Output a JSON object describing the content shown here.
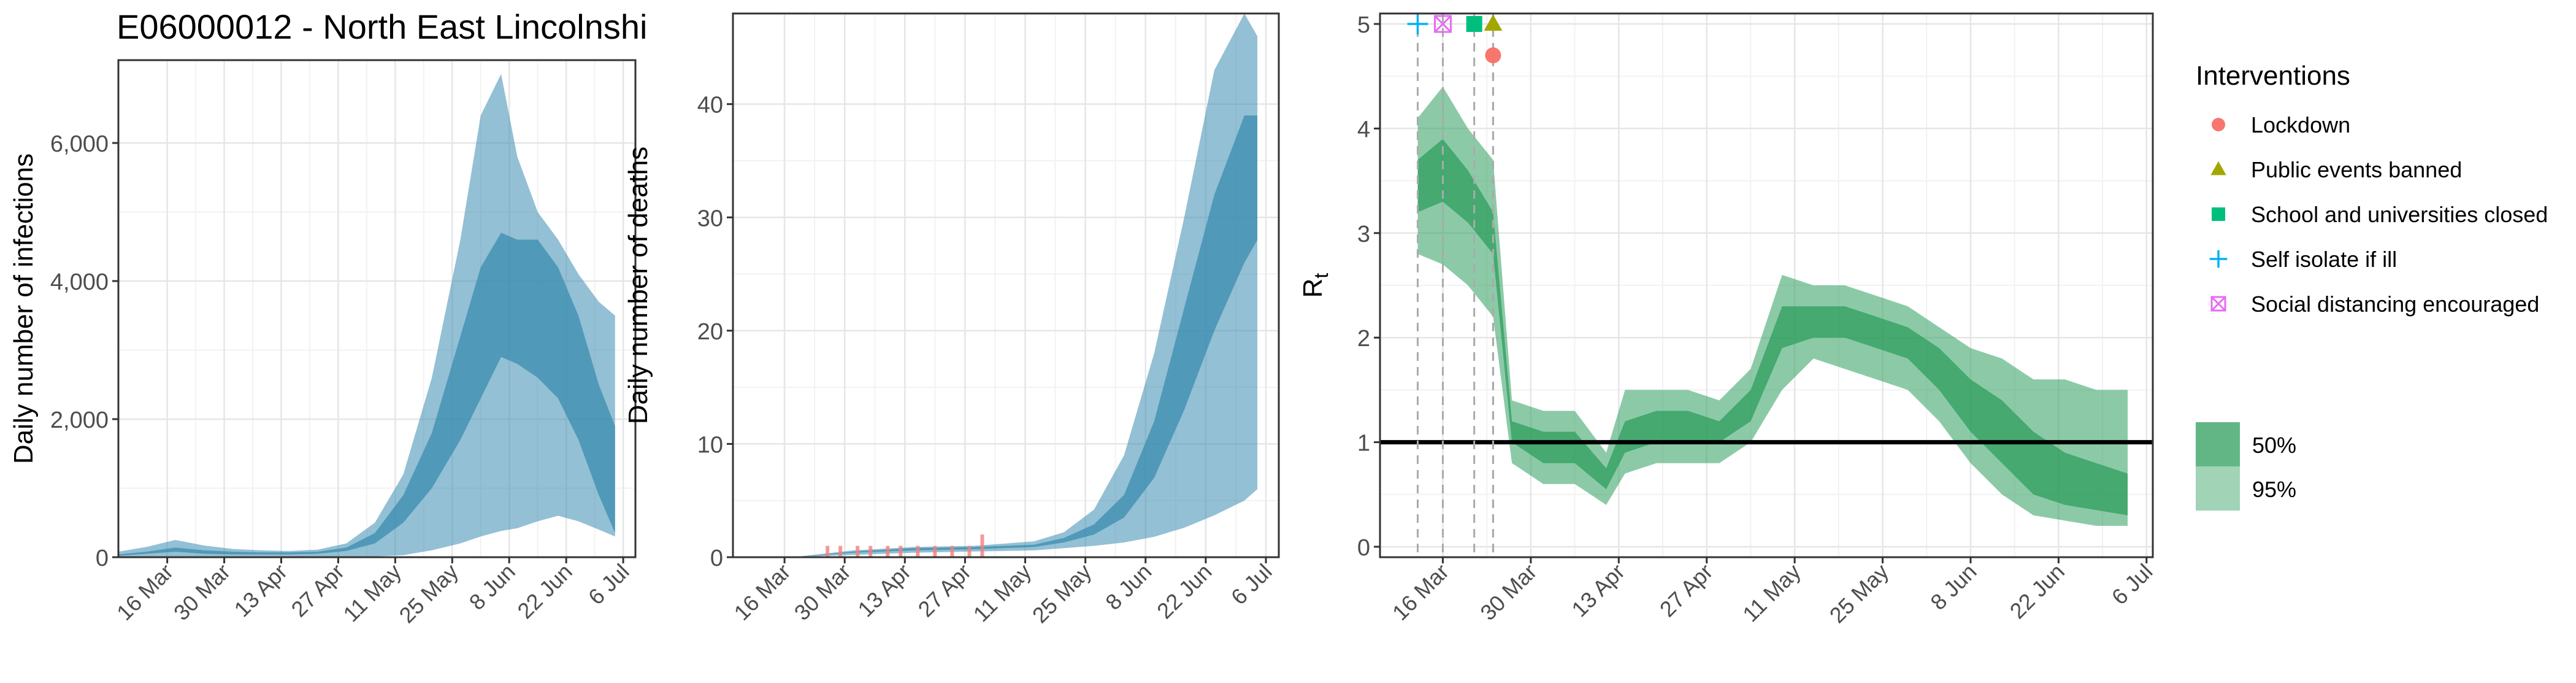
{
  "title": "E06000012 - North East Lincolnshi",
  "colors": {
    "infections_band": "#3b8cb0",
    "deaths_band": "#3b8cb0",
    "deaths_bars": "#f08080",
    "rt_band": "#2e9e5e",
    "lockdown": "#F8766D",
    "public_events": "#A3A500",
    "schools": "#00BF7D",
    "self_isolate": "#00B0F6",
    "social_distancing": "#E76BF3"
  },
  "legend": {
    "interventions_title": "Interventions",
    "interventions": [
      {
        "label": "Lockdown",
        "shape": "circle",
        "color": "#F8766D"
      },
      {
        "label": "Public events banned",
        "shape": "triangle",
        "color": "#A3A500"
      },
      {
        "label": "School and universities closed",
        "shape": "square",
        "color": "#00BF7D"
      },
      {
        "label": "Self isolate if ill",
        "shape": "plus",
        "color": "#00B0F6"
      },
      {
        "label": "Social distancing encouraged",
        "shape": "boxx",
        "color": "#E76BF3"
      }
    ],
    "bands": [
      {
        "label": "50%",
        "opacity": 0.75
      },
      {
        "label": "95%",
        "opacity": 0.45
      }
    ]
  },
  "chart_data": [
    {
      "type": "area",
      "id": "infections",
      "ylabel": "Daily number of infections",
      "xlabel": "",
      "ylim": [
        0,
        7200
      ],
      "yticks": [
        0,
        2000,
        4000,
        6000
      ],
      "ytick_labels": [
        "0",
        "2,000",
        "4,000",
        "6,000"
      ],
      "xlim": [
        "2020-03-04",
        "2020-07-09"
      ],
      "xticks": [
        "2020-03-16",
        "2020-03-30",
        "2020-04-13",
        "2020-04-27",
        "2020-05-11",
        "2020-05-25",
        "2020-06-08",
        "2020-06-22",
        "2020-07-06"
      ],
      "xtick_labels": [
        "16 Mar",
        "30 Mar",
        "13 Apr",
        "27 Apr",
        "11 May",
        "25 May",
        "8 Jun",
        "22 Jun",
        "6 Jul"
      ],
      "x": [
        "2020-03-04",
        "2020-03-11",
        "2020-03-18",
        "2020-03-25",
        "2020-04-01",
        "2020-04-08",
        "2020-04-15",
        "2020-04-22",
        "2020-04-29",
        "2020-05-06",
        "2020-05-13",
        "2020-05-20",
        "2020-05-27",
        "2020-06-01",
        "2020-06-06",
        "2020-06-10",
        "2020-06-15",
        "2020-06-20",
        "2020-06-25",
        "2020-06-30",
        "2020-07-04"
      ],
      "series": [
        {
          "name": "95%",
          "lower": [
            0,
            0,
            0,
            0,
            0,
            0,
            0,
            0,
            0,
            10,
            30,
            100,
            200,
            300,
            380,
            420,
            520,
            600,
            520,
            400,
            300
          ],
          "upper": [
            80,
            150,
            250,
            170,
            120,
            100,
            90,
            110,
            200,
            500,
            1200,
            2600,
            4600,
            6400,
            7000,
            5800,
            5000,
            4600,
            4100,
            3700,
            3500
          ]
        },
        {
          "name": "50%",
          "lower": [
            20,
            50,
            80,
            50,
            40,
            40,
            40,
            50,
            90,
            200,
            500,
            1000,
            1700,
            2300,
            2900,
            2800,
            2600,
            2300,
            1700,
            900,
            350
          ],
          "upper": [
            40,
            80,
            140,
            100,
            80,
            70,
            70,
            80,
            140,
            350,
            900,
            1800,
            3200,
            4200,
            4700,
            4600,
            4600,
            4200,
            3500,
            2500,
            1900
          ]
        }
      ]
    },
    {
      "type": "area",
      "id": "deaths",
      "ylabel": "Daily number of deaths",
      "xlabel": "",
      "ylim": [
        0,
        48
      ],
      "yticks": [
        0,
        10,
        20,
        30,
        40
      ],
      "ytick_labels": [
        "0",
        "10",
        "20",
        "30",
        "40"
      ],
      "xlim": [
        "2020-03-04",
        "2020-07-09"
      ],
      "xticks": [
        "2020-03-16",
        "2020-03-30",
        "2020-04-13",
        "2020-04-27",
        "2020-05-11",
        "2020-05-25",
        "2020-06-08",
        "2020-06-22",
        "2020-07-06"
      ],
      "xtick_labels": [
        "16 Mar",
        "30 Mar",
        "13 Apr",
        "27 Apr",
        "11 May",
        "25 May",
        "8 Jun",
        "22 Jun",
        "6 Jul"
      ],
      "x": [
        "2020-03-04",
        "2020-03-18",
        "2020-04-01",
        "2020-04-15",
        "2020-04-29",
        "2020-05-13",
        "2020-05-20",
        "2020-05-27",
        "2020-06-03",
        "2020-06-10",
        "2020-06-17",
        "2020-06-24",
        "2020-07-01",
        "2020-07-04"
      ],
      "series": [
        {
          "name": "95%",
          "lower": [
            0,
            0,
            0.2,
            0.4,
            0.5,
            0.6,
            0.8,
            1.0,
            1.3,
            1.8,
            2.6,
            3.7,
            5.0,
            6.0
          ],
          "upper": [
            0,
            0,
            0.6,
            0.9,
            1.0,
            1.4,
            2.2,
            4.2,
            9.0,
            18.0,
            30.0,
            43.0,
            48.0,
            46.0
          ]
        },
        {
          "name": "50%",
          "lower": [
            0,
            0,
            0.4,
            0.6,
            0.7,
            0.9,
            1.3,
            2.0,
            3.5,
            7.0,
            13.0,
            20.0,
            26.0,
            28.0
          ],
          "upper": [
            0,
            0,
            0.5,
            0.8,
            0.9,
            1.1,
            1.7,
            2.9,
            5.5,
            12.0,
            22.0,
            32.0,
            39.0,
            39.0
          ]
        }
      ],
      "bars": {
        "x": [
          "2020-03-26",
          "2020-03-29",
          "2020-04-02",
          "2020-04-05",
          "2020-04-09",
          "2020-04-12",
          "2020-04-16",
          "2020-04-20",
          "2020-04-24",
          "2020-04-28",
          "2020-05-01"
        ],
        "values": [
          1,
          1,
          1,
          1,
          1,
          1,
          1,
          1,
          1,
          1,
          2
        ]
      }
    },
    {
      "type": "area",
      "id": "rt",
      "ylabel": "R",
      "ylabel_sub": "t",
      "xlabel": "",
      "ylim": [
        -0.1,
        5.1
      ],
      "yticks": [
        0,
        1,
        2,
        3,
        4,
        5
      ],
      "ytick_labels": [
        "0",
        "1",
        "2",
        "3",
        "4",
        "5"
      ],
      "xlim": [
        "2020-03-06",
        "2020-07-07"
      ],
      "xticks": [
        "2020-03-16",
        "2020-03-30",
        "2020-04-13",
        "2020-04-27",
        "2020-05-11",
        "2020-05-25",
        "2020-06-08",
        "2020-06-22",
        "2020-07-06"
      ],
      "xtick_labels": [
        "16 Mar",
        "30 Mar",
        "13 Apr",
        "27 Apr",
        "11 May",
        "25 May",
        "8 Jun",
        "22 Jun",
        "6 Jul"
      ],
      "reference_line": 1,
      "x": [
        "2020-03-12",
        "2020-03-16",
        "2020-03-20",
        "2020-03-24",
        "2020-03-27",
        "2020-04-01",
        "2020-04-06",
        "2020-04-11",
        "2020-04-14",
        "2020-04-19",
        "2020-04-24",
        "2020-04-29",
        "2020-05-04",
        "2020-05-09",
        "2020-05-14",
        "2020-05-19",
        "2020-05-24",
        "2020-05-29",
        "2020-06-03",
        "2020-06-08",
        "2020-06-13",
        "2020-06-18",
        "2020-06-23",
        "2020-06-28",
        "2020-07-03"
      ],
      "series": [
        {
          "name": "95%",
          "lower": [
            2.8,
            2.7,
            2.5,
            2.2,
            0.8,
            0.6,
            0.6,
            0.4,
            0.7,
            0.8,
            0.8,
            0.8,
            1.0,
            1.5,
            1.8,
            1.7,
            1.6,
            1.5,
            1.2,
            0.8,
            0.5,
            0.3,
            0.25,
            0.2,
            0.2
          ],
          "upper": [
            4.1,
            4.4,
            4.0,
            3.7,
            1.4,
            1.3,
            1.3,
            0.9,
            1.5,
            1.5,
            1.5,
            1.4,
            1.7,
            2.6,
            2.5,
            2.5,
            2.4,
            2.3,
            2.1,
            1.9,
            1.8,
            1.6,
            1.6,
            1.5,
            1.5
          ]
        },
        {
          "name": "50%",
          "lower": [
            3.2,
            3.3,
            3.1,
            2.8,
            1.0,
            0.8,
            0.8,
            0.55,
            0.9,
            1.0,
            1.0,
            1.0,
            1.2,
            1.9,
            2.0,
            2.0,
            1.9,
            1.8,
            1.5,
            1.1,
            0.8,
            0.5,
            0.4,
            0.35,
            0.3
          ],
          "upper": [
            3.7,
            3.9,
            3.6,
            3.2,
            1.2,
            1.1,
            1.1,
            0.75,
            1.2,
            1.3,
            1.3,
            1.2,
            1.5,
            2.3,
            2.3,
            2.3,
            2.2,
            2.1,
            1.9,
            1.6,
            1.4,
            1.1,
            0.9,
            0.8,
            0.7
          ]
        }
      ],
      "interventions": [
        {
          "name": "Self isolate if ill",
          "date": "2020-03-12",
          "y": 5.0,
          "shape": "plus",
          "color": "#00B0F6"
        },
        {
          "name": "Social distancing encouraged",
          "date": "2020-03-16",
          "y": 5.0,
          "shape": "boxx",
          "color": "#E76BF3"
        },
        {
          "name": "School and universities closed",
          "date": "2020-03-21",
          "y": 5.0,
          "shape": "square",
          "color": "#00BF7D"
        },
        {
          "name": "Public events banned",
          "date": "2020-03-24",
          "y": 5.0,
          "shape": "triangle",
          "color": "#A3A500"
        },
        {
          "name": "Lockdown",
          "date": "2020-03-24",
          "y": 4.7,
          "shape": "circle",
          "color": "#F8766D"
        }
      ]
    }
  ]
}
